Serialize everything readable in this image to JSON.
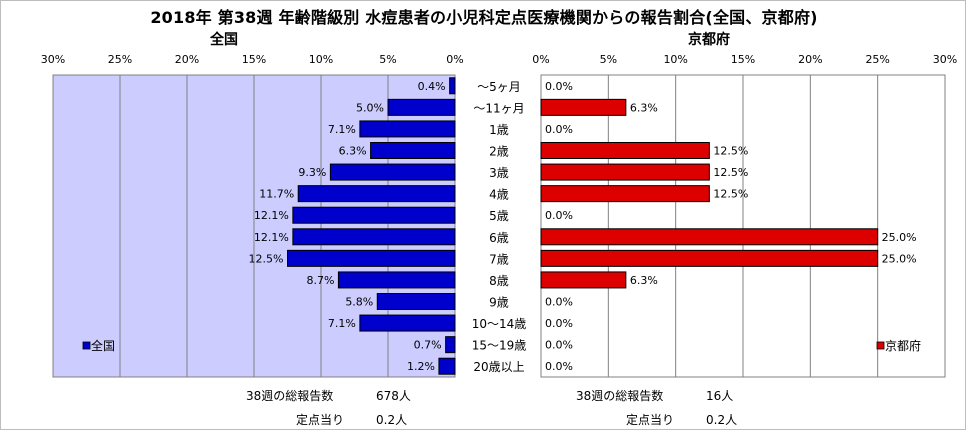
{
  "title": "2018年 第38週 年齢階級別 水痘患者の小児科定点医療機関からの報告割合(全国、京都府)",
  "chart_data": {
    "type": "bar",
    "categories": [
      "～5ヶ月",
      "～11ヶ月",
      "1歳",
      "2歳",
      "3歳",
      "4歳",
      "5歳",
      "6歳",
      "7歳",
      "8歳",
      "9歳",
      "10～14歳",
      "15～19歳",
      "20歳以上"
    ],
    "x_ticks": [
      "0%",
      "5%",
      "10%",
      "15%",
      "20%",
      "25%",
      "30%"
    ],
    "xlim": [
      0,
      30
    ],
    "grid": true,
    "series": [
      {
        "name": "全国",
        "panel_title": "全国",
        "color": "#0000cc",
        "values": [
          0.4,
          5.0,
          7.1,
          6.3,
          9.3,
          11.7,
          12.1,
          12.1,
          12.5,
          8.7,
          5.8,
          7.1,
          0.7,
          1.2
        ],
        "labels": [
          "0.4%",
          "5.0%",
          "7.1%",
          "6.3%",
          "9.3%",
          "11.7%",
          "12.1%",
          "12.1%",
          "12.5%",
          "8.7%",
          "5.8%",
          "7.1%",
          "0.7%",
          "1.2%"
        ],
        "legend": "bottom-left",
        "plot_bg": "#ccccff"
      },
      {
        "name": "京都府",
        "panel_title": "京都府",
        "color": "#dd0000",
        "values": [
          0.0,
          6.3,
          0.0,
          12.5,
          12.5,
          12.5,
          0.0,
          25.0,
          25.0,
          6.3,
          0.0,
          0.0,
          0.0,
          0.0
        ],
        "labels": [
          "0.0%",
          "6.3%",
          "0.0%",
          "12.5%",
          "12.5%",
          "12.5%",
          "0.0%",
          "25.0%",
          "25.0%",
          "6.3%",
          "0.0%",
          "0.0%",
          "0.0%",
          "0.0%"
        ],
        "legend": "bottom-right",
        "plot_bg": "#ffffff"
      }
    ]
  },
  "footer": {
    "national": {
      "total_label": "38週の総報告数",
      "total_value": "678人",
      "per_label": "定点当り",
      "per_value": "0.2人"
    },
    "kyoto": {
      "total_label": "38週の総報告数",
      "total_value": "16人",
      "per_label": "定点当り",
      "per_value": "0.2人"
    }
  }
}
